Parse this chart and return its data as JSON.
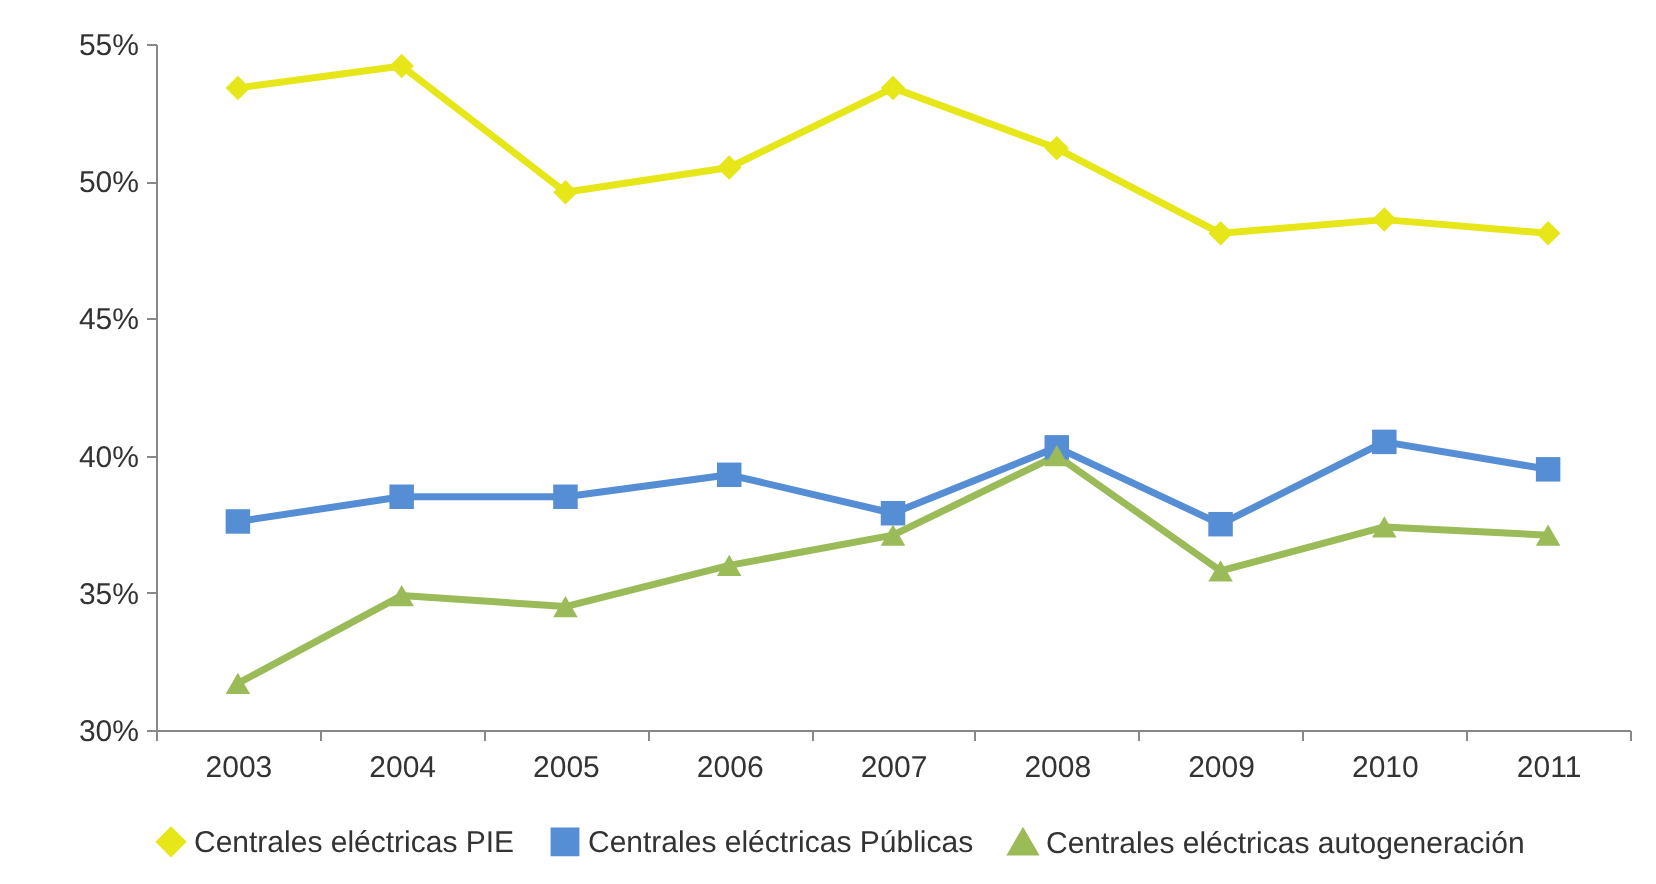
{
  "chart_data": {
    "type": "line",
    "categories": [
      "2003",
      "2004",
      "2005",
      "2006",
      "2007",
      "2008",
      "2009",
      "2010",
      "2011"
    ],
    "series": [
      {
        "name": "Centrales eléctricas PIE",
        "color": "#e6e619",
        "marker": "diamond",
        "values": [
          53.4,
          54.2,
          49.6,
          50.5,
          53.4,
          51.2,
          48.1,
          48.6,
          48.1
        ]
      },
      {
        "name": "Centrales eléctricas Públicas",
        "color": "#558ed5",
        "marker": "square",
        "values": [
          37.6,
          38.5,
          38.5,
          39.3,
          37.9,
          40.3,
          37.5,
          40.5,
          39.5
        ]
      },
      {
        "name": "Centrales eléctricas autogeneración",
        "color": "#9bbb59",
        "marker": "triangle",
        "values": [
          31.7,
          34.9,
          34.5,
          36.0,
          37.1,
          40.0,
          35.8,
          37.4,
          37.1
        ]
      }
    ],
    "ylim": [
      30,
      55
    ],
    "yticks": [
      {
        "value": 30,
        "label": "30%"
      },
      {
        "value": 35,
        "label": "35%"
      },
      {
        "value": 40,
        "label": "40%"
      },
      {
        "value": 45,
        "label": "45%"
      },
      {
        "value": 50,
        "label": "50%"
      },
      {
        "value": 55,
        "label": "55%"
      }
    ],
    "grid": false,
    "legend": "bottom",
    "line_style": "solid"
  }
}
